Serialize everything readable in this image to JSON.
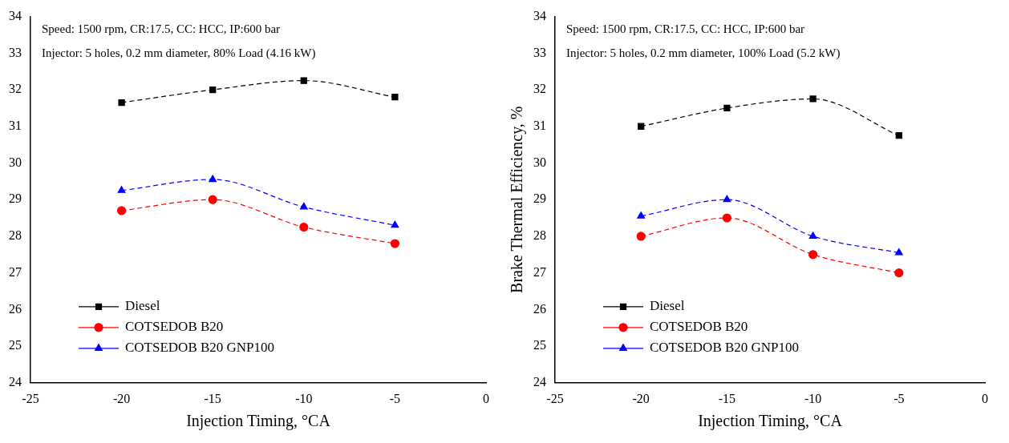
{
  "chart_data": [
    {
      "type": "line",
      "xlabel": "Injection Timing, °CA",
      "annotations": [
        "Speed: 1500 rpm, CR:17.5, CC: HCC, IP:600 bar",
        "Injector: 5 holes, 0.2 mm diameter, 80% Load (4.16 kW)"
      ],
      "x": [
        -20,
        -15,
        -10,
        -5
      ],
      "xlim": [
        -25,
        0
      ],
      "xticks": [
        -25,
        -20,
        -15,
        -10,
        -5,
        0
      ],
      "ylim": [
        24,
        34
      ],
      "yticks": [
        24,
        25,
        26,
        27,
        28,
        29,
        30,
        31,
        32,
        33,
        34
      ],
      "legend": "bottom left",
      "line_style": "dashed",
      "grid": false,
      "series": [
        {
          "name": "Diesel",
          "color": "#000000",
          "marker": "square",
          "values": [
            31.65,
            32.0,
            32.25,
            31.8
          ]
        },
        {
          "name": "COTSEDOB B20",
          "color": "#ff0000",
          "marker": "circle",
          "values": [
            28.7,
            29.0,
            28.25,
            27.8
          ]
        },
        {
          "name": "COTSEDOB B20 GNP100",
          "color": "#0000ff",
          "marker": "triangle",
          "values": [
            29.25,
            29.55,
            28.8,
            28.3
          ]
        }
      ]
    },
    {
      "type": "line",
      "xlabel": "Injection Timing, °CA",
      "ylabel": "Brake Thermal Efficiency, %",
      "annotations": [
        "Speed: 1500 rpm, CR:17.5, CC: HCC, IP:600 bar",
        "Injector: 5 holes, 0.2 mm diameter, 100% Load (5.2 kW)"
      ],
      "x": [
        -20,
        -15,
        -10,
        -5
      ],
      "xlim": [
        -25,
        0
      ],
      "xticks": [
        -25,
        -20,
        -15,
        -10,
        -5,
        0
      ],
      "ylim": [
        24,
        34
      ],
      "yticks": [
        24,
        25,
        26,
        27,
        28,
        29,
        30,
        31,
        32,
        33,
        34
      ],
      "legend": "bottom left",
      "line_style": "dashed",
      "grid": false,
      "series": [
        {
          "name": "Diesel",
          "color": "#000000",
          "marker": "square",
          "values": [
            31.0,
            31.5,
            31.75,
            30.75
          ]
        },
        {
          "name": "COTSEDOB B20",
          "color": "#ff0000",
          "marker": "circle",
          "values": [
            28.0,
            28.5,
            27.5,
            27.0
          ]
        },
        {
          "name": "COTSEDOB B20 GNP100",
          "color": "#0000ff",
          "marker": "triangle",
          "values": [
            28.55,
            29.0,
            28.0,
            27.55
          ]
        }
      ]
    }
  ]
}
